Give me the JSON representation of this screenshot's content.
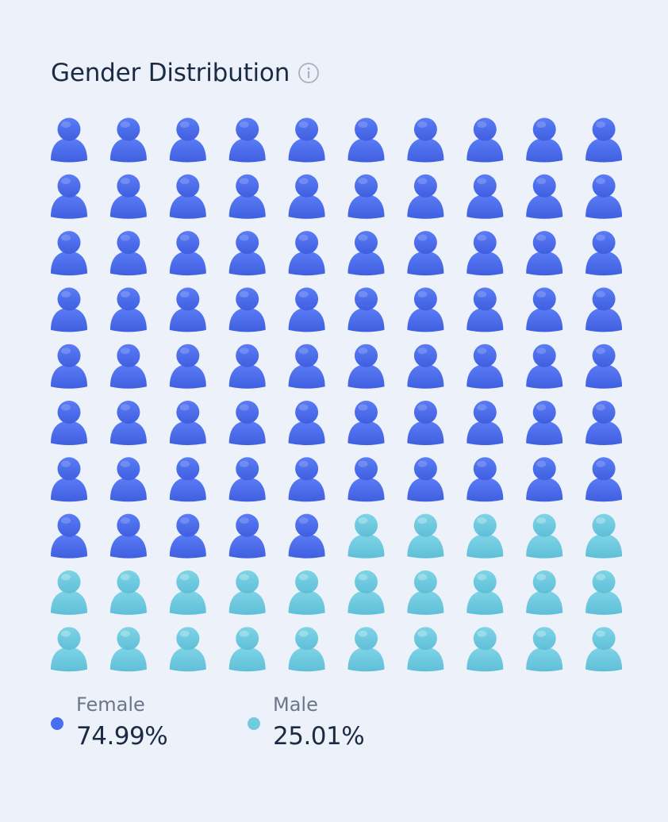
{
  "header": {
    "title": "Gender Distribution",
    "info_icon": "info-icon"
  },
  "chart_data": {
    "type": "pictogram",
    "total_icons": 100,
    "rows": 10,
    "columns": 10,
    "icon": "person-icon",
    "series": [
      {
        "name": "Female",
        "value_label": "74.99%",
        "value": 74.99,
        "icons": 75,
        "color": "#4a6cf0"
      },
      {
        "name": "Male",
        "value_label": "25.01%",
        "value": 25.01,
        "icons": 25,
        "color": "#6fcbe0"
      }
    ]
  },
  "legend": [
    {
      "label": "Female",
      "value": "74.99%",
      "color": "#4a6cf0"
    },
    {
      "label": "Male",
      "value": "25.01%",
      "color": "#6fcbe0"
    }
  ]
}
